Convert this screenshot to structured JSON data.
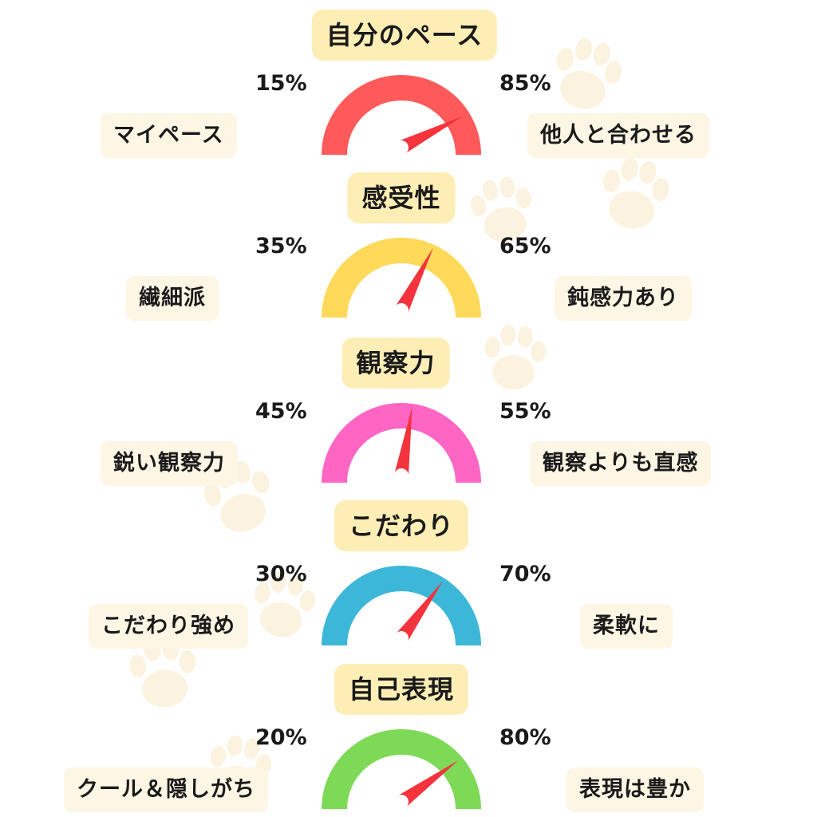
{
  "chart_data": [
    {
      "type": "gauge",
      "title": "自分のペース",
      "left": {
        "label": "マイペース",
        "value": 15,
        "display": "15%"
      },
      "right": {
        "label": "他人と合わせる",
        "value": 85,
        "display": "85%"
      },
      "needle_value": 85,
      "color": "#ff5a5a"
    },
    {
      "type": "gauge",
      "title": "感受性",
      "left": {
        "label": "繊細派",
        "value": 35,
        "display": "35%"
      },
      "right": {
        "label": "鈍感力あり",
        "value": 65,
        "display": "65%"
      },
      "needle_value": 65,
      "color": "#ffd95a"
    },
    {
      "type": "gauge",
      "title": "観察力",
      "left": {
        "label": "鋭い観察力",
        "value": 45,
        "display": "45%"
      },
      "right": {
        "label": "観察よりも直感",
        "value": 55,
        "display": "55%"
      },
      "needle_value": 55,
      "color": "#ff66c4"
    },
    {
      "type": "gauge",
      "title": "こだわり",
      "left": {
        "label": "こだわり強め",
        "value": 30,
        "display": "30%"
      },
      "right": {
        "label": "柔軟に",
        "value": 70,
        "display": "70%"
      },
      "needle_value": 70,
      "color": "#3db7d8"
    },
    {
      "type": "gauge",
      "title": "自己表現",
      "left": {
        "label": "クール＆隠しがち",
        "value": 20,
        "display": "20%"
      },
      "right": {
        "label": "表現は豊か",
        "value": 80,
        "display": "80%"
      },
      "needle_value": 80,
      "color": "#7ed957"
    }
  ],
  "style": {
    "needle_color": "#f4333d",
    "title_bg": "#fdeeb6",
    "label_bg": "#fdf6e4",
    "decoration": "paw-print-icon"
  }
}
